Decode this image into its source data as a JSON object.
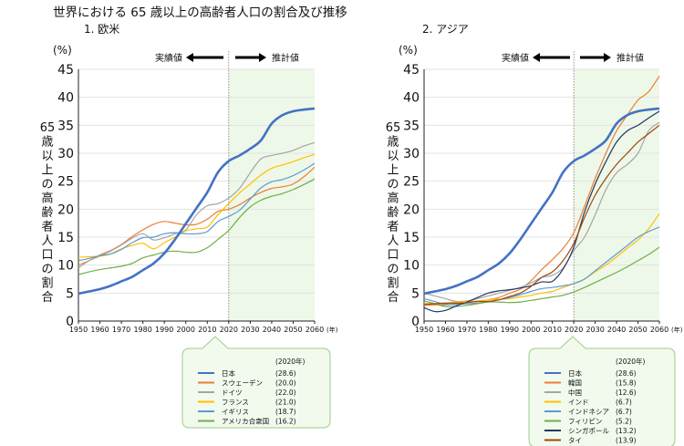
{
  "title": "世界における 65 歳以上の高齢者人口の割合及び推移",
  "chart_data": [
    {
      "type": "line",
      "subtitle": "1. 欧米",
      "ylabel": "65歳以上の高齢者人口の割合",
      "yunit": "(%)",
      "xunit": "(年)",
      "ylim": [
        0,
        45
      ],
      "yticks": [
        0,
        5,
        10,
        15,
        20,
        25,
        30,
        35,
        40,
        45
      ],
      "xticks": [
        1950,
        1960,
        1970,
        1980,
        1990,
        2000,
        2010,
        2020,
        2030,
        2040,
        2050,
        2060
      ],
      "grid": true,
      "actual_label": "実績値",
      "projected_label": "推計値",
      "projection_start": 2020,
      "shade_color": "#eef8e8",
      "legend_header": "(2020年)",
      "legend_position": "bottom",
      "x": [
        1950,
        1955,
        1960,
        1965,
        1970,
        1975,
        1980,
        1985,
        1990,
        1995,
        2000,
        2005,
        2010,
        2015,
        2020,
        2025,
        2030,
        2035,
        2040,
        2045,
        2050,
        2055,
        2060
      ],
      "series": [
        {
          "name": "日本",
          "value_2020": "(28.6)",
          "color": "#4472c4",
          "width": 2.6,
          "values": [
            4.9,
            5.3,
            5.7,
            6.3,
            7.1,
            7.9,
            9.1,
            10.3,
            12.1,
            14.6,
            17.4,
            20.2,
            23.0,
            26.6,
            28.6,
            29.6,
            30.8,
            32.3,
            35.3,
            36.8,
            37.5,
            37.8,
            38.0
          ]
        },
        {
          "name": "スウェーデン",
          "value_2020": "(20.0)",
          "color": "#ed7d31",
          "width": 1.2,
          "values": [
            10.0,
            10.8,
            11.8,
            12.6,
            13.7,
            15.1,
            16.3,
            17.3,
            17.8,
            17.5,
            17.2,
            17.3,
            18.2,
            19.6,
            20.0,
            20.8,
            22.0,
            23.0,
            23.7,
            24.0,
            24.5,
            25.8,
            27.5
          ]
        },
        {
          "name": "ドイツ",
          "value_2020": "(22.0)",
          "color": "#a5a5a5",
          "width": 1.2,
          "values": [
            9.5,
            10.8,
            11.6,
            12.5,
            13.6,
            14.8,
            15.6,
            14.5,
            14.9,
            15.6,
            16.3,
            19.0,
            20.6,
            21.0,
            22.0,
            23.7,
            26.5,
            29.0,
            29.6,
            30.0,
            30.5,
            31.3,
            31.9
          ]
        },
        {
          "name": "フランス",
          "value_2020": "(21.0)",
          "color": "#ffc000",
          "width": 1.2,
          "values": [
            11.4,
            11.5,
            11.6,
            12.0,
            12.9,
            13.5,
            13.9,
            12.9,
            14.0,
            15.0,
            16.1,
            16.5,
            16.8,
            19.0,
            21.0,
            22.9,
            24.5,
            26.1,
            27.3,
            27.9,
            28.5,
            29.2,
            29.8
          ]
        },
        {
          "name": "イギリス",
          "value_2020": "(18.7)",
          "color": "#5b9bd5",
          "width": 1.2,
          "values": [
            10.8,
            11.2,
            11.7,
            12.0,
            12.8,
            14.0,
            14.9,
            15.0,
            15.6,
            15.8,
            15.6,
            15.6,
            16.0,
            17.8,
            18.7,
            19.8,
            21.8,
            23.8,
            24.9,
            25.3,
            26.0,
            27.0,
            28.2
          ]
        },
        {
          "name": "アメリカ合衆国",
          "value_2020": "(16.2)",
          "color": "#70ad47",
          "width": 1.2,
          "values": [
            8.3,
            8.8,
            9.2,
            9.5,
            9.8,
            10.3,
            11.3,
            11.8,
            12.3,
            12.5,
            12.3,
            12.3,
            13.1,
            14.6,
            16.2,
            18.5,
            20.4,
            21.6,
            22.3,
            22.8,
            23.5,
            24.4,
            25.4
          ]
        }
      ]
    },
    {
      "type": "line",
      "subtitle": "2. アジア",
      "ylabel": "65歳以上の高齢者人口の割合",
      "yunit": "(%)",
      "xunit": "(年)",
      "ylim": [
        0,
        45
      ],
      "yticks": [
        0,
        5,
        10,
        15,
        20,
        25,
        30,
        35,
        40,
        45
      ],
      "xticks": [
        1950,
        1960,
        1970,
        1980,
        1990,
        2000,
        2010,
        2020,
        2030,
        2040,
        2050,
        2060
      ],
      "grid": true,
      "actual_label": "実績値",
      "projected_label": "推計値",
      "projection_start": 2020,
      "shade_color": "#eef8e8",
      "legend_header": "(2020年)",
      "legend_position": "bottom",
      "x": [
        1950,
        1955,
        1960,
        1965,
        1970,
        1975,
        1980,
        1985,
        1990,
        1995,
        2000,
        2005,
        2010,
        2015,
        2020,
        2025,
        2030,
        2035,
        2040,
        2045,
        2050,
        2055,
        2060
      ],
      "series": [
        {
          "name": "日本",
          "value_2020": "(28.6)",
          "color": "#4472c4",
          "width": 2.6,
          "values": [
            4.9,
            5.3,
            5.7,
            6.3,
            7.1,
            7.9,
            9.1,
            10.3,
            12.1,
            14.6,
            17.4,
            20.2,
            23.0,
            26.6,
            28.6,
            29.6,
            30.8,
            32.3,
            35.3,
            36.8,
            37.5,
            37.8,
            38.0
          ]
        },
        {
          "name": "韓国",
          "value_2020": "(15.8)",
          "color": "#ed7d31",
          "width": 1.2,
          "values": [
            2.8,
            2.9,
            2.9,
            3.0,
            3.3,
            3.5,
            3.8,
            4.2,
            5.0,
            5.7,
            7.2,
            9.2,
            11.0,
            13.0,
            15.8,
            20.5,
            25.5,
            30.0,
            34.0,
            36.8,
            39.5,
            41.0,
            43.8
          ]
        },
        {
          "name": "中国",
          "value_2020": "(12.6)",
          "color": "#a5a5a5",
          "width": 1.2,
          "values": [
            5.0,
            4.5,
            4.0,
            3.5,
            3.6,
            4.0,
            4.5,
            5.0,
            5.5,
            6.0,
            6.8,
            7.8,
            8.2,
            9.5,
            12.6,
            15.0,
            19.0,
            23.5,
            26.5,
            28.0,
            30.0,
            34.0,
            35.5
          ]
        },
        {
          "name": "インド",
          "value_2020": "(6.7)",
          "color": "#ffc000",
          "width": 1.2,
          "values": [
            3.1,
            3.1,
            3.2,
            3.4,
            3.5,
            3.6,
            3.8,
            3.9,
            4.0,
            4.3,
            4.6,
            5.0,
            5.3,
            6.0,
            6.7,
            7.5,
            8.8,
            10.0,
            11.5,
            13.0,
            14.5,
            16.5,
            19.2
          ]
        },
        {
          "name": "インドネシア",
          "value_2020": "(6.7)",
          "color": "#5b9bd5",
          "width": 1.2,
          "values": [
            4.0,
            3.5,
            3.0,
            3.0,
            3.1,
            3.2,
            3.5,
            3.8,
            4.2,
            4.7,
            5.3,
            5.8,
            6.0,
            6.3,
            6.7,
            7.5,
            9.0,
            10.5,
            12.0,
            13.5,
            15.0,
            16.0,
            16.8
          ]
        },
        {
          "name": "フィリピン",
          "value_2020": "(5.2)",
          "color": "#70ad47",
          "width": 1.2,
          "values": [
            3.6,
            3.1,
            2.6,
            2.6,
            2.8,
            3.1,
            3.4,
            3.4,
            3.3,
            3.4,
            3.7,
            4.0,
            4.3,
            4.6,
            5.2,
            6.0,
            6.9,
            7.8,
            8.7,
            9.7,
            10.8,
            11.9,
            13.2
          ]
        },
        {
          "name": "シンガポール",
          "value_2020": "(13.2)",
          "color": "#1f3864",
          "width": 1.2,
          "values": [
            2.4,
            1.7,
            1.9,
            2.7,
            3.4,
            4.2,
            5.0,
            5.4,
            5.6,
            5.9,
            6.3,
            7.0,
            7.1,
            9.3,
            13.2,
            19.5,
            24.5,
            28.5,
            32.0,
            34.0,
            35.0,
            36.3,
            37.5
          ]
        },
        {
          "name": "タイ",
          "value_2020": "(13.9)",
          "color": "#9e480e",
          "width": 1.2,
          "values": [
            3.0,
            3.1,
            3.2,
            3.2,
            3.3,
            3.5,
            3.5,
            3.8,
            4.4,
            5.0,
            6.2,
            7.8,
            8.8,
            10.8,
            13.9,
            18.5,
            22.5,
            25.5,
            28.0,
            30.0,
            32.0,
            33.5,
            35.0
          ]
        }
      ]
    }
  ]
}
